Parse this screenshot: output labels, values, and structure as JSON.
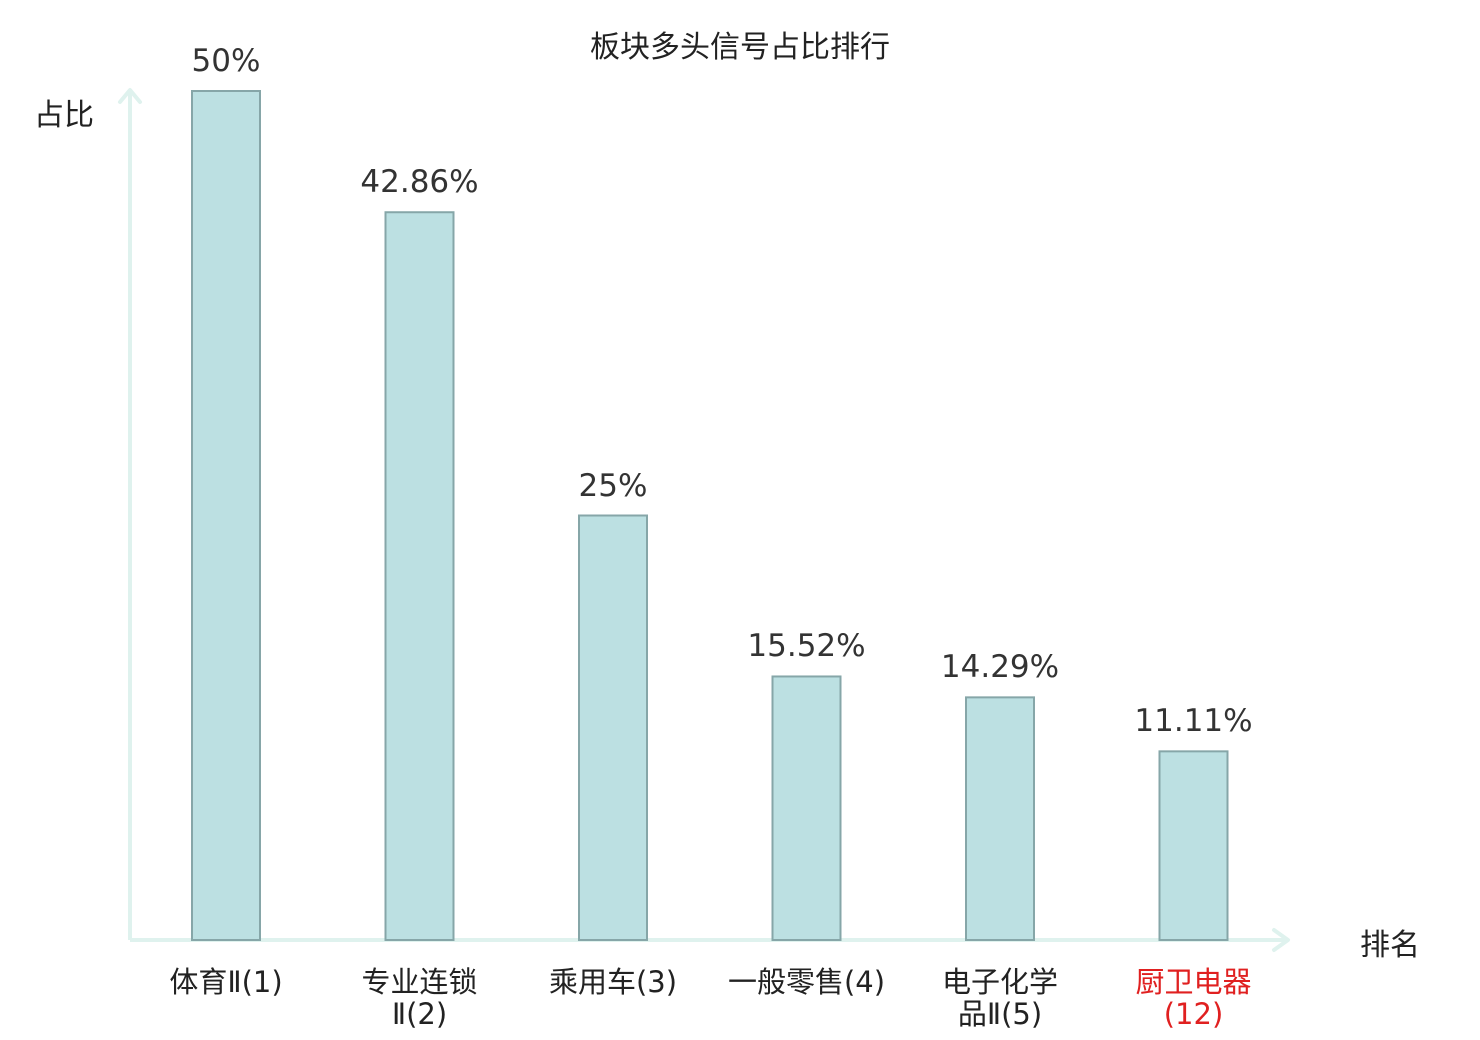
{
  "chart_data": {
    "type": "bar",
    "title": "板块多头信号占比排行",
    "ylabel": "占比",
    "xlabel": "排名",
    "categories": [
      "体育Ⅱ(1)",
      "专业连锁Ⅱ(2)",
      "乘用车(3)",
      "一般零售(4)",
      "电子化学品Ⅱ(5)",
      "厨卫电器(12)"
    ],
    "category_lines": [
      [
        "体育Ⅱ(1)"
      ],
      [
        "专业连锁",
        "Ⅱ(2)"
      ],
      [
        "乘用车(3)"
      ],
      [
        "一般零售(4)"
      ],
      [
        "电子化学",
        "品Ⅱ(5)"
      ],
      [
        "厨卫电器(12)"
      ]
    ],
    "values": [
      50,
      42.86,
      25,
      15.52,
      14.29,
      11.11
    ],
    "value_labels": [
      "50%",
      "42.86%",
      "25%",
      "15.52%",
      "14.29%",
      "11.11%"
    ],
    "highlight_index": 5,
    "ylim": [
      0,
      50
    ],
    "grid": false,
    "colors": {
      "bar_fill": "#bce0e2",
      "bar_stroke": "#86a6a8",
      "axis": "#dff2ee",
      "highlight_text": "#e02020"
    }
  }
}
